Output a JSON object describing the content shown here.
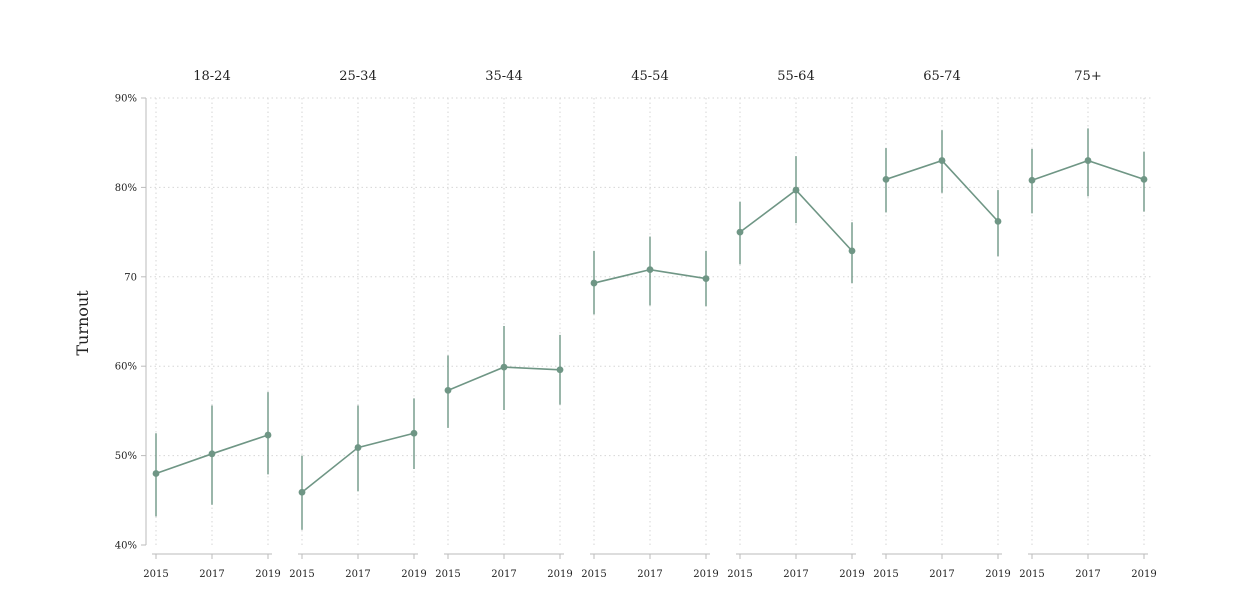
{
  "chart_data": {
    "type": "line",
    "ylabel": "Turnout",
    "ylim": [
      40,
      90
    ],
    "yticks": [
      {
        "value": 40,
        "label": "40%"
      },
      {
        "value": 50,
        "label": "50%"
      },
      {
        "value": 60,
        "label": "60%"
      },
      {
        "value": 70,
        "label": "70"
      },
      {
        "value": 80,
        "label": "80%"
      },
      {
        "value": 90,
        "label": "90%"
      }
    ],
    "x": [
      "2015",
      "2017",
      "2019"
    ],
    "grid": "dotted",
    "color": "#6f9685",
    "panels": [
      {
        "title": "18-24",
        "values": [
          48.0,
          50.2,
          52.3
        ],
        "lower": [
          43.2,
          44.5,
          47.9
        ],
        "upper": [
          52.5,
          55.6,
          57.1
        ]
      },
      {
        "title": "25-34",
        "values": [
          45.9,
          50.9,
          52.5
        ],
        "lower": [
          41.7,
          46.0,
          48.5
        ],
        "upper": [
          50.0,
          55.6,
          56.4
        ]
      },
      {
        "title": "35-44",
        "values": [
          57.3,
          59.9,
          59.6
        ],
        "lower": [
          53.1,
          55.1,
          55.7
        ],
        "upper": [
          61.2,
          64.5,
          63.5
        ]
      },
      {
        "title": "45-54",
        "values": [
          69.3,
          70.8,
          69.8
        ],
        "lower": [
          65.8,
          66.8,
          66.7
        ],
        "upper": [
          72.9,
          74.5,
          72.9
        ]
      },
      {
        "title": "55-64",
        "values": [
          75.0,
          79.7,
          72.9
        ],
        "lower": [
          71.4,
          76.0,
          69.3
        ],
        "upper": [
          78.4,
          83.5,
          76.1
        ]
      },
      {
        "title": "65-74",
        "values": [
          80.9,
          83.0,
          76.2
        ],
        "lower": [
          77.2,
          79.4,
          72.3
        ],
        "upper": [
          84.4,
          86.4,
          79.7
        ]
      },
      {
        "title": "75+",
        "values": [
          80.8,
          83.0,
          80.9
        ],
        "lower": [
          77.1,
          79.0,
          77.3
        ],
        "upper": [
          84.3,
          86.6,
          84.0
        ]
      }
    ]
  }
}
